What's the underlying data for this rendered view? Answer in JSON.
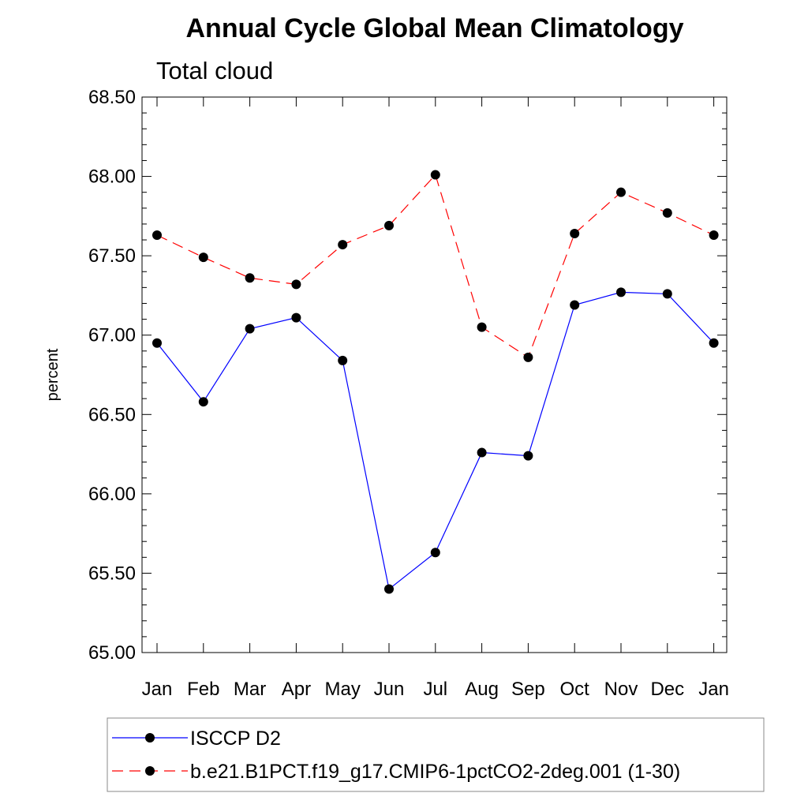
{
  "chart_data": {
    "type": "line",
    "title": "Annual Cycle Global Mean Climatology",
    "subtitle": "Total cloud",
    "ylabel": "percent",
    "xlabel": "",
    "categories": [
      "Jan",
      "Feb",
      "Mar",
      "Apr",
      "May",
      "Jun",
      "Jul",
      "Aug",
      "Sep",
      "Oct",
      "Nov",
      "Dec",
      "Jan"
    ],
    "ylim": [
      65.0,
      68.5
    ],
    "yticks": [
      "65.00",
      "65.50",
      "66.00",
      "66.50",
      "67.00",
      "67.50",
      "68.00",
      "68.50"
    ],
    "grid": false,
    "legend_position": "bottom",
    "series": [
      {
        "name": "ISCCP D2",
        "color": "#0000ff",
        "style": "solid",
        "values": [
          66.95,
          66.58,
          67.04,
          67.11,
          66.84,
          65.4,
          65.63,
          66.26,
          66.24,
          67.19,
          67.27,
          67.26,
          66.95
        ]
      },
      {
        "name": "b.e21.B1PCT.f19_g17.CMIP6-1pctCO2-2deg.001 (1-30)",
        "color": "#ff0000",
        "style": "dashed",
        "values": [
          67.63,
          67.49,
          67.36,
          67.32,
          67.57,
          67.69,
          68.01,
          67.05,
          66.86,
          67.64,
          67.9,
          67.77,
          67.63
        ]
      }
    ]
  }
}
